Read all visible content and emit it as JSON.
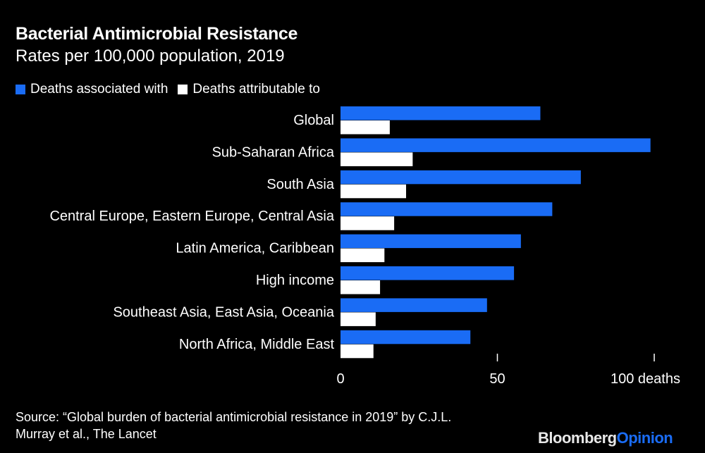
{
  "colors": {
    "associated": "#1a6cf5",
    "attributable": "#ffffff",
    "background": "#000000",
    "logo_accent": "#1a6cf5"
  },
  "chart_data": {
    "type": "bar",
    "orientation": "horizontal",
    "title": "Bacterial Antimicrobial Resistance",
    "subtitle": "Rates per 100,000 population, 2019",
    "categories": [
      "Global",
      "Sub-Saharan Africa",
      "South Asia",
      "Central Europe, Eastern Europe, Central Asia",
      "Latin America, Caribbean",
      "High income",
      "Southeast Asia, East Asia, Oceania",
      "North Africa, Middle East"
    ],
    "series": [
      {
        "name": "Deaths associated with",
        "values": [
          63.7,
          98.8,
          76.6,
          67.5,
          57.5,
          55.3,
          46.7,
          41.4
        ]
      },
      {
        "name": "Deaths attributable to",
        "values": [
          15.7,
          23.0,
          20.9,
          17.1,
          14.0,
          12.6,
          11.2,
          10.5
        ]
      }
    ],
    "xlim": [
      0,
      100
    ],
    "ticks": [
      0,
      50,
      100
    ],
    "tick_labels": [
      "0",
      "50",
      "100 deaths"
    ],
    "legend": "top-left",
    "grid": false
  },
  "footer": {
    "source_line1": "Source: “Global burden of bacterial antimicrobial resistance in 2019” by C.J.L.",
    "source_line2": "Murray et al., The Lancet",
    "logo_part1": "Bloomberg",
    "logo_part2": "Opinion"
  }
}
